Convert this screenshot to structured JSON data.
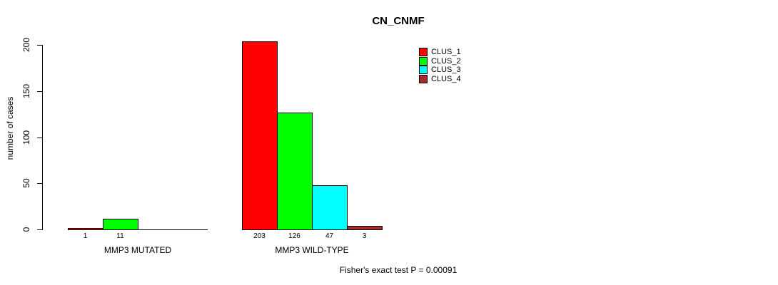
{
  "chart_data": {
    "type": "bar",
    "title": "CN_CNMF",
    "ylabel": "number of cases",
    "xlabel": "",
    "ylim": [
      0,
      200
    ],
    "yticks": [
      0,
      50,
      100,
      150,
      200
    ],
    "grid": false,
    "legend_position": "top-right",
    "categories": [
      "MMP3 MUTATED",
      "MMP3 WILD-TYPE"
    ],
    "series": [
      {
        "name": "CLUS_1",
        "color": "#FF0000",
        "values": [
          1,
          203
        ]
      },
      {
        "name": "CLUS_2",
        "color": "#00FF00",
        "values": [
          11,
          126
        ]
      },
      {
        "name": "CLUS_3",
        "color": "#00FFFF",
        "values": [
          0,
          47
        ]
      },
      {
        "name": "CLUS_4",
        "color": "#A52A2A",
        "values": [
          0,
          3
        ]
      }
    ],
    "bar_value_labels": [
      [
        "1",
        "11",
        "",
        ""
      ],
      [
        "203",
        "126",
        "47",
        "3"
      ]
    ],
    "annotation": "Fisher's exact test P = 0.00091"
  }
}
